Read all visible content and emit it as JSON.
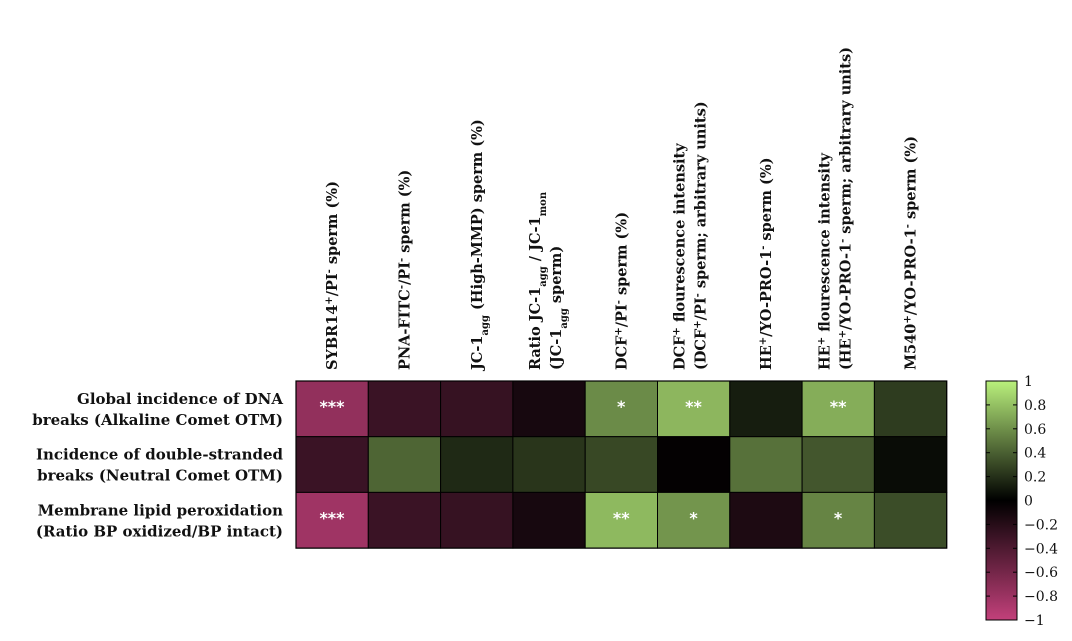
{
  "chart_data": {
    "type": "heatmap",
    "title": "",
    "xlabel": "",
    "ylabel": "",
    "columns": [
      {
        "parts": [
          {
            "t": "SYBR14"
          },
          {
            "t": "+",
            "s": "sup"
          },
          {
            "t": "/PI"
          },
          {
            "t": "-",
            "s": "sup"
          },
          {
            "t": " sperm (%)"
          }
        ]
      },
      {
        "parts": [
          {
            "t": "PNA-FITC"
          },
          {
            "t": "-",
            "s": "sup"
          },
          {
            "t": "/PI"
          },
          {
            "t": "-",
            "s": "sup"
          },
          {
            "t": " sperm (%)"
          }
        ]
      },
      {
        "parts": [
          {
            "t": "JC-1"
          },
          {
            "t": "agg",
            "s": "sub"
          },
          {
            "t": " (High-MMP) sperm (%)"
          }
        ]
      },
      {
        "parts": [
          {
            "t": "Ratio JC-1"
          },
          {
            "t": "agg",
            "s": "sub"
          },
          {
            "t": " / JC-1"
          },
          {
            "t": "mon",
            "s": "sub"
          }
        ],
        "line2": [
          {
            "t": "(JC-1"
          },
          {
            "t": "agg",
            "s": "sub"
          },
          {
            "t": " sperm)"
          }
        ]
      },
      {
        "parts": [
          {
            "t": "DCF"
          },
          {
            "t": "+",
            "s": "sup"
          },
          {
            "t": "/PI"
          },
          {
            "t": "-",
            "s": "sup"
          },
          {
            "t": " sperm (%)"
          }
        ]
      },
      {
        "parts": [
          {
            "t": "DCF"
          },
          {
            "t": "+",
            "s": "sup"
          },
          {
            "t": " flourescence intensity"
          }
        ],
        "line2": [
          {
            "t": "(DCF"
          },
          {
            "t": "+",
            "s": "sup"
          },
          {
            "t": "/PI"
          },
          {
            "t": "-",
            "s": "sup"
          },
          {
            "t": " sperm; arbitrary units)"
          }
        ]
      },
      {
        "parts": [
          {
            "t": "HE"
          },
          {
            "t": "+",
            "s": "sup"
          },
          {
            "t": "/YO-PRO-1"
          },
          {
            "t": "-",
            "s": "sup"
          },
          {
            "t": " sperm (%)"
          }
        ]
      },
      {
        "parts": [
          {
            "t": "HE"
          },
          {
            "t": "+",
            "s": "sup"
          },
          {
            "t": " flourescence intensity"
          }
        ],
        "line2": [
          {
            "t": "(HE"
          },
          {
            "t": "+",
            "s": "sup"
          },
          {
            "t": "/YO-PRO-1"
          },
          {
            "t": "-",
            "s": "sup"
          },
          {
            "t": " sperm; arbitrary units)"
          }
        ]
      },
      {
        "parts": [
          {
            "t": "M540"
          },
          {
            "t": "+",
            "s": "sup"
          },
          {
            "t": "/YO-PRO-1"
          },
          {
            "t": "-",
            "s": "sup"
          },
          {
            "t": " sperm (%)"
          }
        ]
      }
    ],
    "rows": [
      {
        "line1": "Global incidence of DNA",
        "line2": "breaks (Alkaline Comet OTM)"
      },
      {
        "line1": "Incidence of double-stranded",
        "line2": "breaks (Neutral Comet OTM)"
      },
      {
        "line1": "Membrane lipid peroxidation",
        "line2": "(Ratio BP oxidized/BP intact)"
      }
    ],
    "values": [
      [
        -0.75,
        -0.3,
        -0.28,
        -0.12,
        0.58,
        0.76,
        0.12,
        0.72,
        0.25
      ],
      [
        -0.3,
        0.42,
        0.17,
        0.22,
        0.3,
        -0.02,
        0.47,
        0.36,
        0.05
      ],
      [
        -0.82,
        -0.3,
        -0.28,
        -0.12,
        0.77,
        0.62,
        -0.15,
        0.55,
        0.32
      ]
    ],
    "significance": [
      [
        "***",
        "",
        "",
        "",
        "*",
        "**",
        "",
        "**",
        ""
      ],
      [
        "",
        "",
        "",
        "",
        "",
        "",
        "",
        "",
        ""
      ],
      [
        "***",
        "",
        "",
        "",
        "**",
        "*",
        "",
        "*",
        ""
      ]
    ],
    "colorbar": {
      "range": [
        -1,
        1
      ],
      "ticks": [
        "1",
        "0.8",
        "0.6",
        "0.4",
        "0.2",
        "0",
        "−0.2",
        "−0.4",
        "−0.6",
        "−0.8",
        "−1"
      ],
      "colors": {
        "negative": "#c2407a",
        "zero": "#000000",
        "positive": "#b9f07c"
      }
    },
    "grid": true
  }
}
